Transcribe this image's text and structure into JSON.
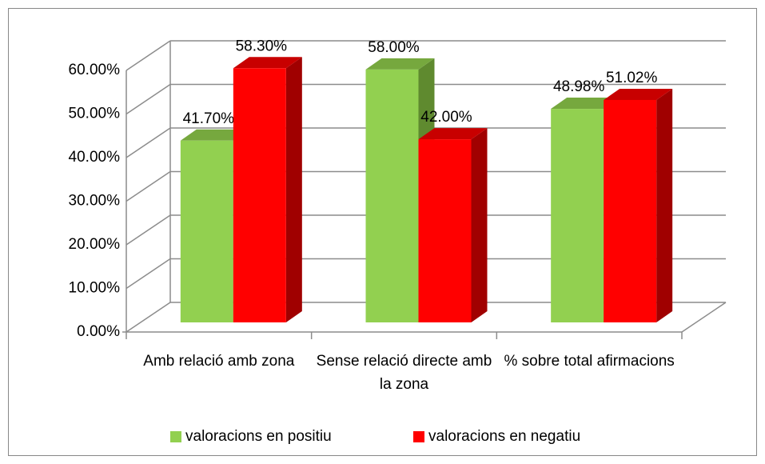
{
  "chart_data": {
    "type": "bar3d",
    "categories": [
      "Amb relació amb zona",
      "Sense relació directe amb la zona",
      "% sobre total afirmacions"
    ],
    "series": [
      {
        "name": "valoracions en positiu",
        "color": "#92d050",
        "values": [
          41.7,
          58.0,
          48.98
        ],
        "value_labels": [
          "41.70%",
          "58.00%",
          "48.98%"
        ]
      },
      {
        "name": "valoracions en negatiu",
        "color": "#ff0000",
        "values": [
          58.3,
          42.0,
          51.02
        ],
        "value_labels": [
          "58.30%",
          "42.00%",
          "51.02%"
        ]
      }
    ],
    "ylim": [
      0,
      60
    ],
    "yticks": [
      {
        "value": 0,
        "label": "0.00%"
      },
      {
        "value": 10,
        "label": "10.00%"
      },
      {
        "value": 20,
        "label": "20.00%"
      },
      {
        "value": 30,
        "label": "30.00%"
      },
      {
        "value": 40,
        "label": "40.00%"
      },
      {
        "value": 50,
        "label": "50.00%"
      },
      {
        "value": 60,
        "label": "60.00%"
      }
    ],
    "grid": true,
    "legend": "bottom"
  }
}
